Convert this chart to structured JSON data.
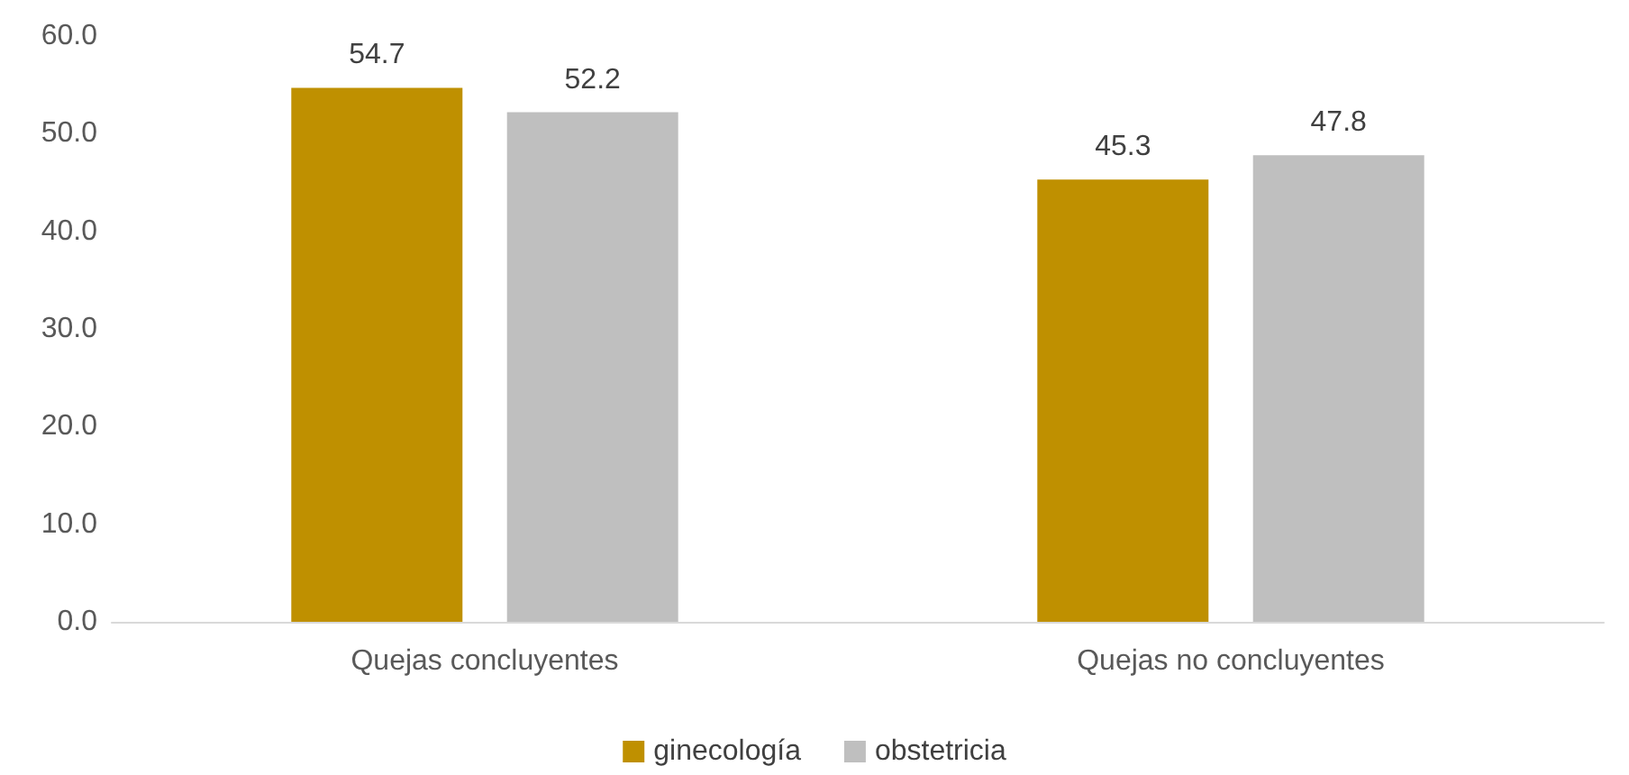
{
  "chart_data": {
    "type": "bar",
    "categories": [
      "Quejas concluyentes",
      "Quejas no concluyentes"
    ],
    "series": [
      {
        "name": "ginecología",
        "color": "#bf9000",
        "values": [
          54.7,
          45.3
        ]
      },
      {
        "name": "obstetricia",
        "color": "#bfbfbf",
        "values": [
          52.2,
          47.8
        ]
      }
    ],
    "ylim": [
      0,
      60
    ],
    "yticks": [
      {
        "value": 0,
        "label": "0.0"
      },
      {
        "value": 10,
        "label": "10.0"
      },
      {
        "value": 20,
        "label": "20.0"
      },
      {
        "value": 30,
        "label": "30.0"
      },
      {
        "value": 40,
        "label": "40.0"
      },
      {
        "value": 50,
        "label": "50.0"
      },
      {
        "value": 60,
        "label": "60.0"
      }
    ],
    "data_labels": true,
    "grid": false,
    "legend": "bottom"
  }
}
